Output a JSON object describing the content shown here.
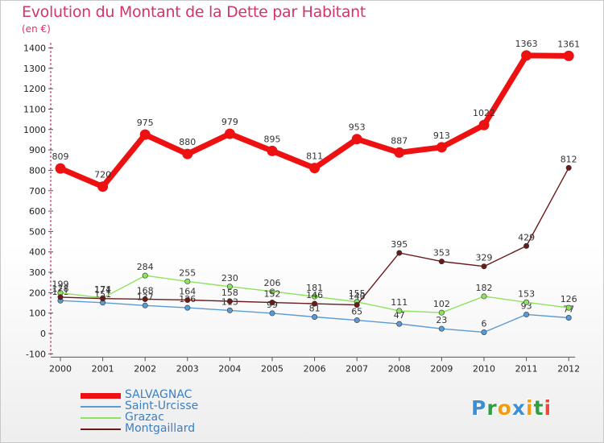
{
  "title": "Evolution du Montant de la Dette par Habitant",
  "unit_label": "(en €)",
  "chart_data": {
    "type": "line",
    "title": "Evolution du Montant de la Dette par Habitant",
    "subtitle": "(en €)",
    "x": [
      "2000",
      "2001",
      "2002",
      "2003",
      "2004",
      "2005",
      "2006",
      "2007",
      "2008",
      "2009",
      "2010",
      "2011",
      "2012"
    ],
    "ylim": [
      -100,
      1400
    ],
    "yticks": [
      "-100",
      "0",
      "100",
      "200",
      "300",
      "400",
      "500",
      "600",
      "700",
      "800",
      "900",
      "1000",
      "1100",
      "1200",
      "1300",
      "1400"
    ],
    "grid": false,
    "legend_position": "bottom-left",
    "series": [
      {
        "name": "SALVAGNAC",
        "color": "#ee1111",
        "values": [
          809,
          720,
          975,
          880,
          979,
          895,
          811,
          953,
          887,
          913,
          1022,
          1363,
          1361
        ]
      },
      {
        "name": "Saint-Urcisse",
        "color": "#5b9bd5",
        "values": [
          161,
          151,
          137,
          126,
          113,
          99,
          81,
          65,
          47,
          23,
          6,
          93,
          77
        ]
      },
      {
        "name": "Grazac",
        "color": "#8ee35e",
        "values": [
          199,
          174,
          284,
          255,
          230,
          206,
          181,
          155,
          111,
          102,
          182,
          153,
          126
        ]
      },
      {
        "name": "Montgaillard",
        "color": "#6b1a1a",
        "values": [
          178,
          171,
          168,
          164,
          158,
          152,
          146,
          140,
          395,
          353,
          329,
          429,
          812
        ]
      }
    ]
  },
  "brand": {
    "letters": [
      "P",
      "r",
      "o",
      "x",
      "i",
      "t",
      "i"
    ],
    "colors": [
      "#3b8fd6",
      "#2f9e45",
      "#f39c12",
      "#3b8fd6",
      "#f39c12",
      "#2f9e45",
      "#e74c3c"
    ]
  }
}
